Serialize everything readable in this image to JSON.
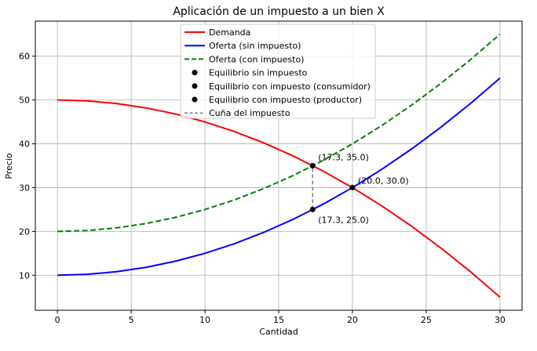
{
  "chart_data": {
    "type": "line",
    "title": "Aplicación de un impuesto a un bien X",
    "xlabel": "Cantidad",
    "ylabel": "Precio",
    "xlim": [
      -1.5,
      31.5
    ],
    "ylim": [
      2,
      68
    ],
    "xticks": [
      0,
      5,
      10,
      15,
      20,
      25,
      30
    ],
    "yticks": [
      10,
      20,
      30,
      40,
      50,
      60
    ],
    "grid": true,
    "legend_position": "top-center",
    "series": [
      {
        "name": "Demanda",
        "color": "#ff0000",
        "style": "solid",
        "x": [
          0,
          2,
          4,
          6,
          8,
          10,
          12,
          14,
          16,
          18,
          20,
          22,
          24,
          26,
          28,
          30
        ],
        "y": [
          50,
          49.8,
          49.2,
          48.2,
          46.8,
          45,
          42.8,
          40.2,
          37.2,
          33.8,
          30,
          25.8,
          21.2,
          16.2,
          10.8,
          5
        ]
      },
      {
        "name": "Oferta (sin impuesto)",
        "color": "#0000ff",
        "style": "solid",
        "x": [
          0,
          2,
          4,
          6,
          8,
          10,
          12,
          14,
          16,
          18,
          20,
          22,
          24,
          26,
          28,
          30
        ],
        "y": [
          10,
          10.2,
          10.8,
          11.8,
          13.2,
          15,
          17.2,
          19.8,
          22.8,
          26.2,
          30,
          34.2,
          38.8,
          43.8,
          49.2,
          55
        ]
      },
      {
        "name": "Oferta (con impuesto)",
        "color": "#008000",
        "style": "dashed",
        "x": [
          0,
          2,
          4,
          6,
          8,
          10,
          12,
          14,
          16,
          18,
          20,
          22,
          24,
          26,
          28,
          30
        ],
        "y": [
          20,
          20.2,
          20.8,
          21.8,
          23.2,
          25,
          27.2,
          29.8,
          32.8,
          36.2,
          40,
          44.2,
          48.8,
          53.8,
          59.2,
          65
        ]
      }
    ],
    "points": [
      {
        "name": "Equilibrio sin impuesto",
        "x": 20.0,
        "y": 30.0,
        "label": "(20.0, 30.0)"
      },
      {
        "name": "Equilibrio con impuesto (consumidor)",
        "x": 17.3,
        "y": 35.0,
        "label": "(17.3, 35.0)"
      },
      {
        "name": "Equilibrio con impuesto (productor)",
        "x": 17.3,
        "y": 25.0,
        "label": "(17.3, 25.0)"
      }
    ],
    "tax_wedge": {
      "name": "Cuña del impuesto",
      "x": 17.3,
      "y_from": 25.0,
      "y_to": 35.0,
      "color": "#808080"
    }
  }
}
